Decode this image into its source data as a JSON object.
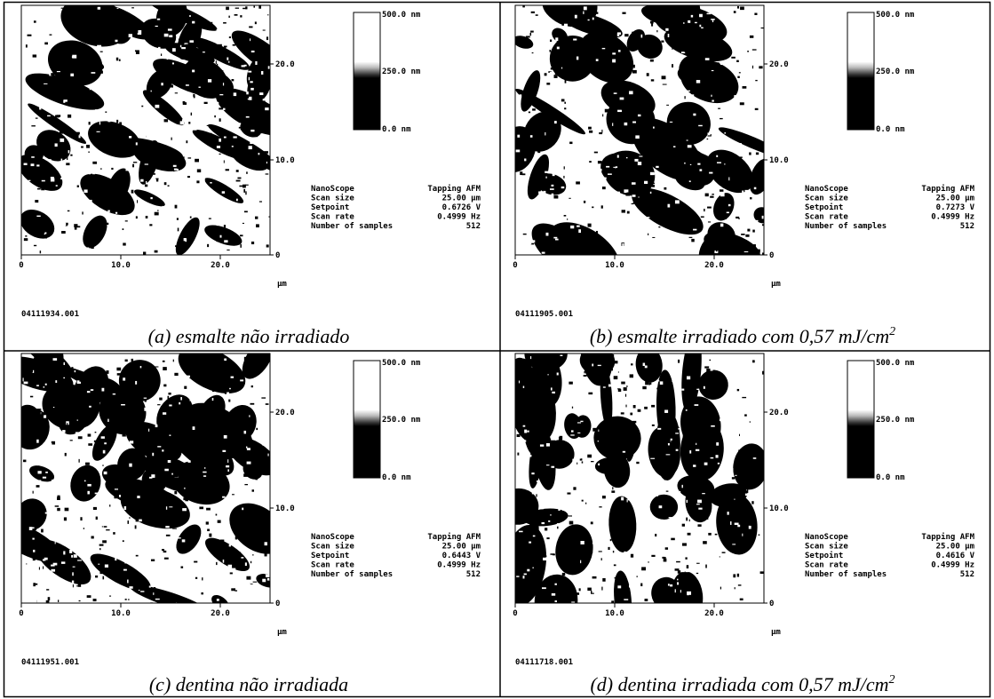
{
  "panels": [
    {
      "file": "04111934.001",
      "caption": "(a) esmalte não irradiado",
      "caption_superscript": null,
      "colorbar": [
        "500.0 nm",
        "250.0 nm",
        "0.0 nm"
      ],
      "y_ticks": [
        "20.0",
        "10.0",
        "0"
      ],
      "x_ticks": [
        "0",
        "10.0",
        "20.0"
      ],
      "x_unit": "µm",
      "params": [
        [
          "NanoScope",
          "Tapping AFM"
        ],
        [
          "Scan size",
          "25.00 µm"
        ],
        [
          "Setpoint",
          "0.6726 V"
        ],
        [
          "Scan rate",
          "0.4999 Hz"
        ],
        [
          "Number of samples",
          "512"
        ]
      ]
    },
    {
      "file": "04111905.001",
      "caption": "(b) esmalte irradiado com 0,57 mJ/cm",
      "caption_superscript": "2",
      "colorbar": [
        "500.0 nm",
        "250.0 nm",
        "0.0 nm"
      ],
      "y_ticks": [
        "20.0",
        "10.0",
        "0"
      ],
      "x_ticks": [
        "0",
        "10.0",
        "20.0"
      ],
      "x_unit": "µm",
      "params": [
        [
          "NanoScope",
          "Tapping AFM"
        ],
        [
          "Scan size",
          "25.00 µm"
        ],
        [
          "Setpoint",
          "0.7273 V"
        ],
        [
          "Scan rate",
          "0.4999 Hz"
        ],
        [
          "Number of samples",
          "512"
        ]
      ]
    },
    {
      "file": "04111951.001",
      "caption": "(c) dentina não irradiada",
      "caption_superscript": null,
      "colorbar": [
        "500.0 nm",
        "250.0 nm",
        "0.0 nm"
      ],
      "y_ticks": [
        "20.0",
        "10.0",
        "0"
      ],
      "x_ticks": [
        "0",
        "10.0",
        "20.0"
      ],
      "x_unit": "µm",
      "params": [
        [
          "NanoScope",
          "Tapping AFM"
        ],
        [
          "Scan size",
          "25.00 µm"
        ],
        [
          "Setpoint",
          "0.6443 V"
        ],
        [
          "Scan rate",
          "0.4999 Hz"
        ],
        [
          "Number of samples",
          "512"
        ]
      ]
    },
    {
      "file": "04111718.001",
      "caption": "(d) dentina irradiada com 0,57 mJ/cm",
      "caption_superscript": "2",
      "colorbar": [
        "500.0 nm",
        "250.0 nm",
        "0.0 nm"
      ],
      "y_ticks": [
        "20.0",
        "10.0",
        "0"
      ],
      "x_ticks": [
        "0",
        "10.0",
        "20.0"
      ],
      "x_unit": "µm",
      "params": [
        [
          "NanoScope",
          "Tapping AFM"
        ],
        [
          "Scan size",
          "25.00 µm"
        ],
        [
          "Setpoint",
          "0.4616 V"
        ],
        [
          "Scan rate",
          "0.4999 Hz"
        ],
        [
          "Number of samples",
          "512"
        ]
      ]
    }
  ]
}
